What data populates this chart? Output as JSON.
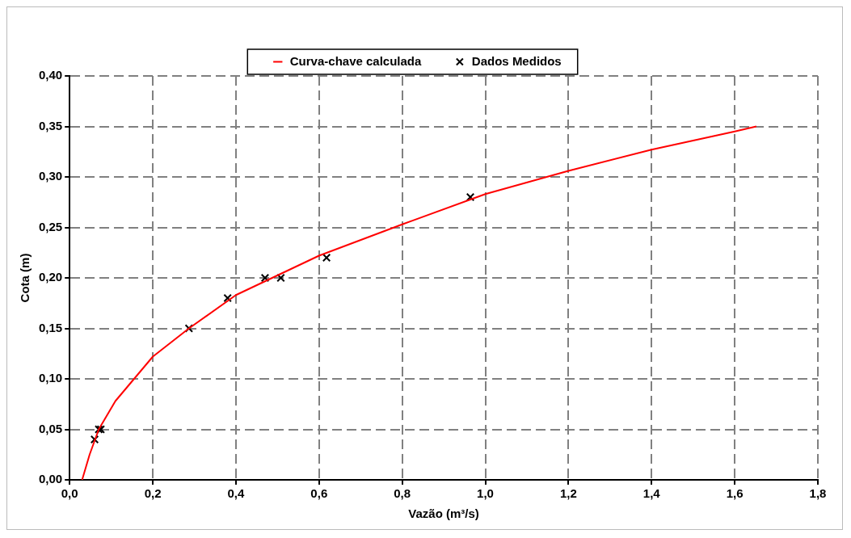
{
  "chart_data": {
    "type": "line",
    "xlabel": "Vazão (m³/s)",
    "ylabel": "Cota (m)",
    "xlim": [
      0,
      1.8
    ],
    "ylim": [
      0,
      0.4
    ],
    "xticks": [
      {
        "value": 0,
        "label": "0,0"
      },
      {
        "value": 0.2,
        "label": "0,2"
      },
      {
        "value": 0.4,
        "label": "0,4"
      },
      {
        "value": 0.6,
        "label": "0,6"
      },
      {
        "value": 0.8,
        "label": "0,8"
      },
      {
        "value": 1,
        "label": "1,0"
      },
      {
        "value": 1.2,
        "label": "1,2"
      },
      {
        "value": 1.4,
        "label": "1,4"
      },
      {
        "value": 1.6,
        "label": "1,6"
      },
      {
        "value": 1.8,
        "label": "1,8"
      }
    ],
    "yticks": [
      {
        "value": 0,
        "label": "0,00"
      },
      {
        "value": 0.05,
        "label": "0,05"
      },
      {
        "value": 0.1,
        "label": "0,10"
      },
      {
        "value": 0.15,
        "label": "0,15"
      },
      {
        "value": 0.2,
        "label": "0,20"
      },
      {
        "value": 0.25,
        "label": "0,25"
      },
      {
        "value": 0.3,
        "label": "0,30"
      },
      {
        "value": 0.35,
        "label": "0,35"
      },
      {
        "value": 0.4,
        "label": "0,40"
      }
    ],
    "grid": true,
    "legend": "top",
    "series": [
      {
        "name": "Curva-chave calculada",
        "color": "#ff0000",
        "marker": "none",
        "line_style": "solid",
        "x": [
          0.03,
          0.048,
          0.07,
          0.11,
          0.155,
          0.2,
          0.287,
          0.4,
          0.6,
          0.8,
          1.0,
          1.2,
          1.4,
          1.6,
          1.652
        ],
        "values": [
          0,
          0.025,
          0.05,
          0.078,
          0.1,
          0.122,
          0.15,
          0.183,
          0.222,
          0.253,
          0.283,
          0.306,
          0.327,
          0.345,
          0.35
        ]
      },
      {
        "name": "Dados Medidos",
        "type": "scatter",
        "color": "#000000",
        "marker": "cross",
        "x": [
          0.06,
          0.07,
          0.075,
          0.287,
          0.38,
          0.47,
          0.508,
          0.618,
          0.964
        ],
        "values": [
          0.04,
          0.05,
          0.05,
          0.15,
          0.18,
          0.2,
          0.2,
          0.22,
          0.28
        ]
      }
    ]
  }
}
